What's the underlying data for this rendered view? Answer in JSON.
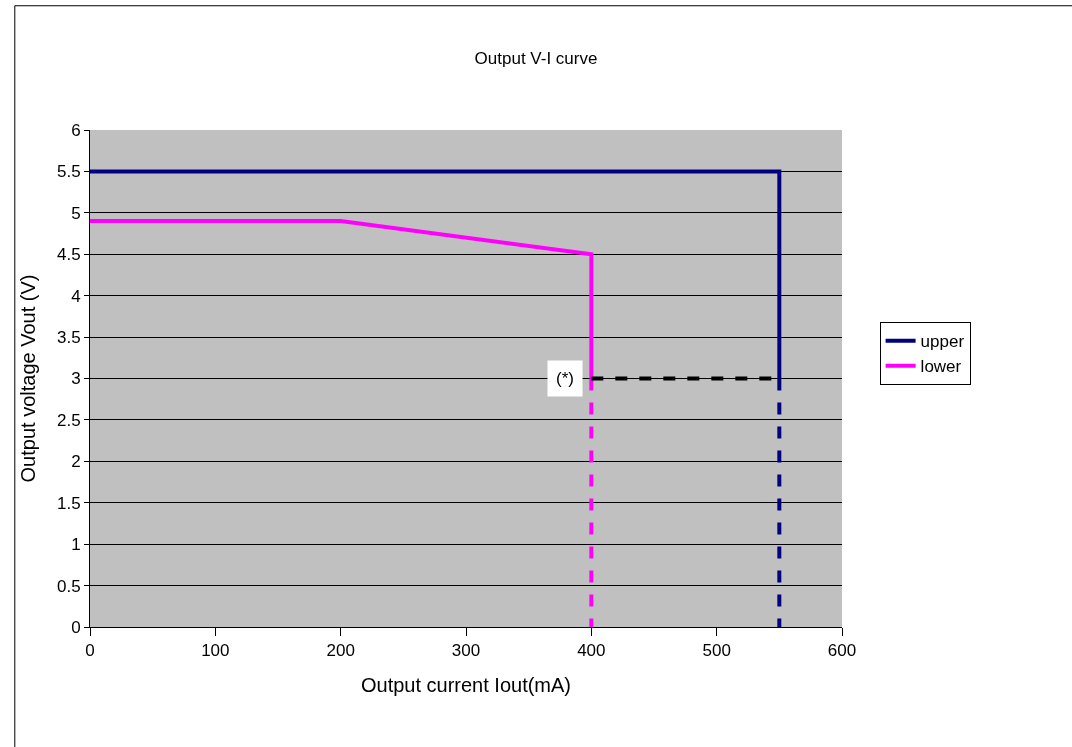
{
  "chart_data": {
    "type": "line",
    "title": "Output V-I curve",
    "xlabel": "Output current Iout(mA)",
    "ylabel": "Output voltage Vout (V)",
    "xlim": [
      0,
      600
    ],
    "xticks": [
      0,
      100,
      200,
      300,
      400,
      500,
      600
    ],
    "ylim": [
      0,
      6
    ],
    "yticks": [
      0,
      0.5,
      1,
      1.5,
      2,
      2.5,
      3,
      3.5,
      4,
      4.5,
      5,
      5.5,
      6
    ],
    "grid": "y",
    "legend": "right",
    "marker": "none",
    "series": [
      {
        "name": "upper",
        "color": "#000080",
        "x": [
          0,
          550,
          550
        ],
        "values": [
          5.5,
          5.5,
          3
        ],
        "line_style": "solid"
      },
      {
        "name": "lower",
        "color": "#ff00ff",
        "x": [
          0,
          200,
          400,
          400
        ],
        "values": [
          4.9,
          4.9,
          4.5,
          3
        ],
        "line_style": "solid"
      },
      {
        "color": "#000080",
        "x": [
          550,
          550
        ],
        "values": [
          3,
          0
        ],
        "line_style": "dashed"
      },
      {
        "color": "#ff00ff",
        "x": [
          400,
          400
        ],
        "values": [
          3,
          0
        ],
        "line_style": "dashed"
      },
      {
        "color": "#000000",
        "x": [
          400,
          550
        ],
        "values": [
          3,
          3
        ],
        "line_style": "dashed"
      }
    ],
    "annotations": [
      {
        "text": "(*)",
        "x": 400,
        "y": 3
      }
    ]
  }
}
